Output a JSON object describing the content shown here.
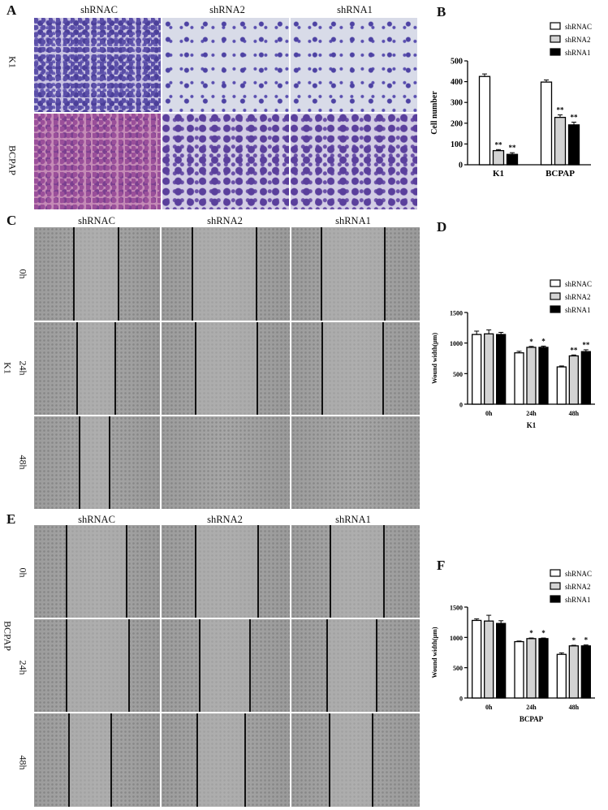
{
  "panels": {
    "A": {
      "label": "A",
      "columns": [
        "shRNAC",
        "shRNA2",
        "shRNA1"
      ],
      "rows": [
        "K1",
        "BCPAP"
      ]
    },
    "B": {
      "label": "B"
    },
    "C": {
      "label": "C",
      "columns": [
        "shRNAC",
        "shRNA2",
        "shRNA1"
      ],
      "rows": [
        "0h",
        "24h",
        "48h"
      ],
      "group": "K1"
    },
    "D": {
      "label": "D"
    },
    "E": {
      "label": "E",
      "columns": [
        "shRNAC",
        "shRNA2",
        "shRNA1"
      ],
      "rows": [
        "0h",
        "24h",
        "48h"
      ],
      "group": "BCPAP"
    },
    "F": {
      "label": "F"
    }
  },
  "colors": {
    "shRNAC": "#ffffff",
    "shRNA2": "#d3d3d3",
    "shRNA1": "#000000"
  },
  "chart_data": [
    {
      "id": "B",
      "type": "bar",
      "title": "",
      "xlabel": "",
      "ylabel": "Cell number",
      "categories": [
        "K1",
        "BCPAP"
      ],
      "ylim": [
        0,
        500
      ],
      "yticks": [
        0,
        100,
        200,
        300,
        400,
        500
      ],
      "legend": [
        "shRNAC",
        "shRNA2",
        "shRNA1"
      ],
      "legend_position": "top-right",
      "series": [
        {
          "name": "shRNAC",
          "values": [
            425,
            398
          ],
          "errors": [
            12,
            10
          ],
          "sig": [
            "",
            ""
          ]
        },
        {
          "name": "shRNA2",
          "values": [
            68,
            228
          ],
          "errors": [
            5,
            12
          ],
          "sig": [
            "**",
            "**"
          ]
        },
        {
          "name": "shRNA1",
          "values": [
            50,
            192
          ],
          "errors": [
            8,
            13
          ],
          "sig": [
            "**",
            "**"
          ]
        }
      ]
    },
    {
      "id": "D",
      "type": "bar",
      "title": "",
      "xlabel": "K1",
      "ylabel": "Wound width(μm)",
      "categories": [
        "0h",
        "24h",
        "48h"
      ],
      "ylim": [
        0,
        1500
      ],
      "yticks": [
        0,
        500,
        1000,
        1500
      ],
      "legend": [
        "shRNAC",
        "shRNA2",
        "shRNA1"
      ],
      "legend_position": "top-right",
      "series": [
        {
          "name": "shRNAC",
          "values": [
            1140,
            840,
            610
          ],
          "errors": [
            55,
            25,
            15
          ],
          "sig": [
            "",
            "",
            ""
          ]
        },
        {
          "name": "shRNA2",
          "values": [
            1150,
            930,
            790
          ],
          "errors": [
            65,
            15,
            15
          ],
          "sig": [
            "",
            "*",
            "**"
          ]
        },
        {
          "name": "shRNA1",
          "values": [
            1140,
            930,
            860
          ],
          "errors": [
            35,
            20,
            30
          ],
          "sig": [
            "",
            "*",
            "**"
          ]
        }
      ]
    },
    {
      "id": "F",
      "type": "bar",
      "title": "",
      "xlabel": "BCPAP",
      "ylabel": "Wound width(μm)",
      "categories": [
        "0h",
        "24h",
        "48h"
      ],
      "ylim": [
        0,
        1500
      ],
      "yticks": [
        0,
        500,
        1000,
        1500
      ],
      "legend": [
        "shRNAC",
        "shRNA2",
        "shRNA1"
      ],
      "legend_position": "top-right",
      "series": [
        {
          "name": "shRNAC",
          "values": [
            1280,
            930,
            720
          ],
          "errors": [
            25,
            10,
            25
          ],
          "sig": [
            "",
            "",
            ""
          ]
        },
        {
          "name": "shRNA2",
          "values": [
            1270,
            980,
            860
          ],
          "errors": [
            95,
            10,
            10
          ],
          "sig": [
            "",
            "*",
            "*"
          ]
        },
        {
          "name": "shRNA1",
          "values": [
            1230,
            980,
            860
          ],
          "errors": [
            45,
            10,
            15
          ],
          "sig": [
            "",
            "*",
            "*"
          ]
        }
      ]
    }
  ]
}
